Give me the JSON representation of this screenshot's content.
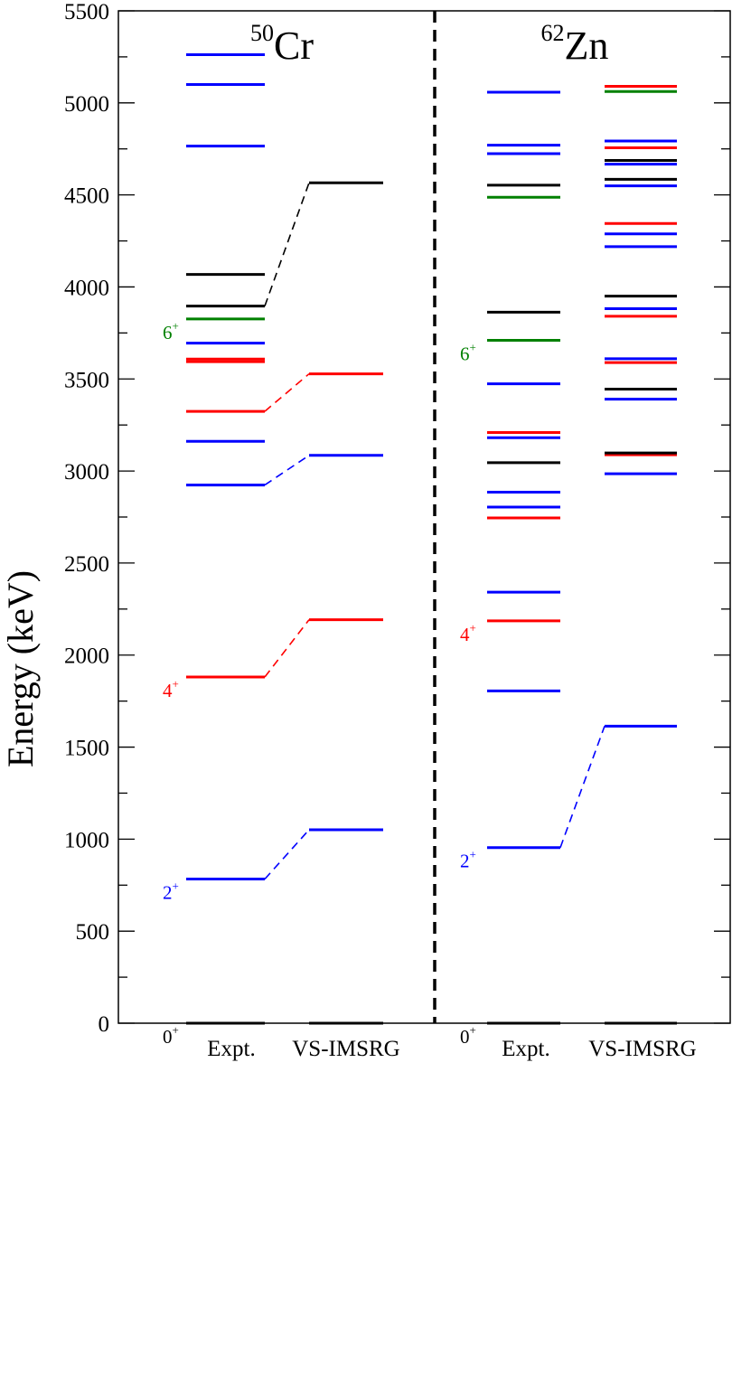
{
  "chart_data": {
    "type": "level-scheme",
    "ylabel": "Energy (keV)",
    "ylim": [
      0,
      5500
    ],
    "yticks": [
      0,
      500,
      1000,
      1500,
      2000,
      2500,
      3000,
      3500,
      4000,
      4500,
      5000,
      5500
    ],
    "colors": {
      "0": "#000000",
      "2": "#0000ff",
      "4": "#ff0000",
      "6": "#008000"
    },
    "panels": [
      {
        "nucleus": "Cr",
        "mass_number": "50",
        "columns": [
          {
            "label": "Expt.",
            "levels": [
              {
                "e": 0,
                "j": 0
              },
              {
                "e": 783,
                "j": 2
              },
              {
                "e": 1881,
                "j": 4
              },
              {
                "e": 2924,
                "j": 2
              },
              {
                "e": 3161,
                "j": 2
              },
              {
                "e": 3324,
                "j": 4
              },
              {
                "e": 3594,
                "j": 4
              },
              {
                "e": 3608,
                "j": 4
              },
              {
                "e": 3695,
                "j": 2
              },
              {
                "e": 3826,
                "j": 6
              },
              {
                "e": 3896,
                "j": 0
              },
              {
                "e": 4068,
                "j": 0
              },
              {
                "e": 4765,
                "j": 2
              },
              {
                "e": 5100,
                "j": 2
              },
              {
                "e": 5262,
                "j": 2
              }
            ]
          },
          {
            "label": "VS-IMSRG",
            "levels": [
              {
                "e": 0,
                "j": 0
              },
              {
                "e": 1051,
                "j": 2
              },
              {
                "e": 2192,
                "j": 4
              },
              {
                "e": 3085,
                "j": 2
              },
              {
                "e": 3528,
                "j": 4
              },
              {
                "e": 4566,
                "j": 0
              }
            ]
          }
        ],
        "connections": [
          {
            "from": 783,
            "to": 1051,
            "j": 2
          },
          {
            "from": 1881,
            "to": 2192,
            "j": 4
          },
          {
            "from": 2924,
            "to": 3085,
            "j": 2
          },
          {
            "from": 3324,
            "to": 3528,
            "j": 4
          },
          {
            "from": 3896,
            "to": 4566,
            "j": 0
          }
        ],
        "spin_labels": [
          {
            "e": 0,
            "j": 0,
            "text": "0",
            "parity": "+"
          },
          {
            "e": 783,
            "j": 2,
            "text": "2",
            "parity": "+"
          },
          {
            "e": 1881,
            "j": 4,
            "text": "4",
            "parity": "+"
          },
          {
            "e": 3826,
            "j": 6,
            "text": "6",
            "parity": "+"
          }
        ]
      },
      {
        "nucleus": "Zn",
        "mass_number": "62",
        "columns": [
          {
            "label": "Expt.",
            "levels": [
              {
                "e": 0,
                "j": 0
              },
              {
                "e": 954,
                "j": 2
              },
              {
                "e": 1805,
                "j": 2
              },
              {
                "e": 2186,
                "j": 4
              },
              {
                "e": 2342,
                "j": 2
              },
              {
                "e": 2745,
                "j": 4
              },
              {
                "e": 2804,
                "j": 2
              },
              {
                "e": 2885,
                "j": 2
              },
              {
                "e": 3045,
                "j": 0
              },
              {
                "e": 3181,
                "j": 2
              },
              {
                "e": 3209,
                "j": 4
              },
              {
                "e": 3474,
                "j": 2
              },
              {
                "e": 3710,
                "j": 6
              },
              {
                "e": 3863,
                "j": 0
              },
              {
                "e": 4487,
                "j": 6
              },
              {
                "e": 4553,
                "j": 0
              },
              {
                "e": 4724,
                "j": 2
              },
              {
                "e": 4770,
                "j": 2
              },
              {
                "e": 5058,
                "j": 2
              }
            ]
          },
          {
            "label": "VS-IMSRG",
            "levels": [
              {
                "e": 0,
                "j": 0
              },
              {
                "e": 1614,
                "j": 2
              },
              {
                "e": 2985,
                "j": 2
              },
              {
                "e": 3088,
                "j": 4
              },
              {
                "e": 3098,
                "j": 0
              },
              {
                "e": 3390,
                "j": 2
              },
              {
                "e": 3445,
                "j": 0
              },
              {
                "e": 3589,
                "j": 4
              },
              {
                "e": 3610,
                "j": 2
              },
              {
                "e": 3841,
                "j": 4
              },
              {
                "e": 3882,
                "j": 2
              },
              {
                "e": 3950,
                "j": 0
              },
              {
                "e": 4219,
                "j": 2
              },
              {
                "e": 4288,
                "j": 2
              },
              {
                "e": 4345,
                "j": 4
              },
              {
                "e": 4549,
                "j": 2
              },
              {
                "e": 4585,
                "j": 0
              },
              {
                "e": 4667,
                "j": 2
              },
              {
                "e": 4687,
                "j": 0
              },
              {
                "e": 4756,
                "j": 4
              },
              {
                "e": 4793,
                "j": 2
              },
              {
                "e": 5062,
                "j": 6
              },
              {
                "e": 5090,
                "j": 4
              }
            ]
          }
        ],
        "connections": [
          {
            "from": 954,
            "to": 1614,
            "j": 2
          }
        ],
        "spin_labels": [
          {
            "e": 0,
            "j": 0,
            "text": "0",
            "parity": "+"
          },
          {
            "e": 954,
            "j": 2,
            "text": "2",
            "parity": "+"
          },
          {
            "e": 2186,
            "j": 4,
            "text": "4",
            "parity": "+"
          },
          {
            "e": 3710,
            "j": 6,
            "text": "6",
            "parity": "+"
          }
        ]
      }
    ]
  }
}
